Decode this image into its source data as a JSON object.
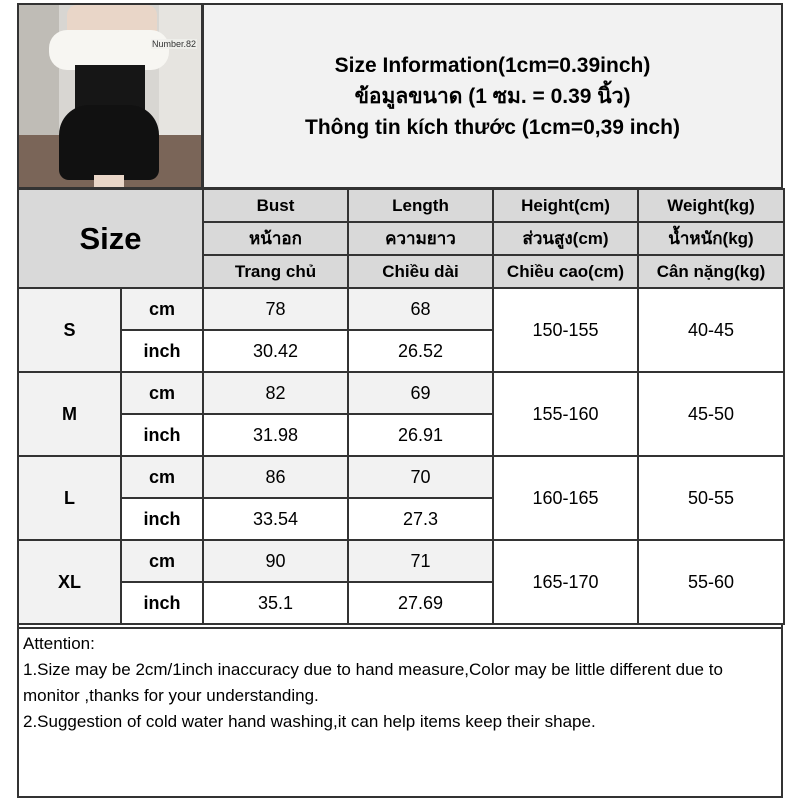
{
  "title": {
    "line1": "Size Information(1cm=0.39inch)",
    "line2": "ข้อมูลขนาด (1 ซม. = 0.39 นิ้ว)",
    "line3": "Thông tin kích thước (1cm=0,39 inch)"
  },
  "photo": {
    "watermark": "Number.82"
  },
  "table": {
    "size_label": "Size",
    "headers": [
      [
        "Bust",
        "หน้าอก",
        "Trang chủ"
      ],
      [
        "Length",
        "ความยาว",
        "Chiều dài"
      ],
      [
        "Height(cm)",
        "ส่วนสูง(cm)",
        "Chiều cao(cm)"
      ],
      [
        "Weight(kg)",
        "น้ำหนัก(kg)",
        "Cân nặng(kg)"
      ]
    ],
    "unit_cm": "cm",
    "unit_inch": "inch",
    "rows": [
      {
        "size": "S",
        "bust_cm": "78",
        "length_cm": "68",
        "bust_in": "30.42",
        "length_in": "26.52",
        "height": "150-155",
        "weight": "40-45"
      },
      {
        "size": "M",
        "bust_cm": "82",
        "length_cm": "69",
        "bust_in": "31.98",
        "length_in": "26.91",
        "height": "155-160",
        "weight": "45-50"
      },
      {
        "size": "L",
        "bust_cm": "86",
        "length_cm": "70",
        "bust_in": "33.54",
        "length_in": "27.3",
        "height": "160-165",
        "weight": "50-55"
      },
      {
        "size": "XL",
        "bust_cm": "90",
        "length_cm": "71",
        "bust_in": "35.1",
        "length_in": "27.69",
        "height": "165-170",
        "weight": "55-60"
      }
    ]
  },
  "attention": {
    "heading": "Attention:",
    "line1": "1.Size may be 2cm/1inch inaccuracy due to hand measure,Color may be little different due to monitor ,thanks for your understanding.",
    "line2": "2.Suggestion of cold water hand washing,it can help items keep their shape."
  }
}
